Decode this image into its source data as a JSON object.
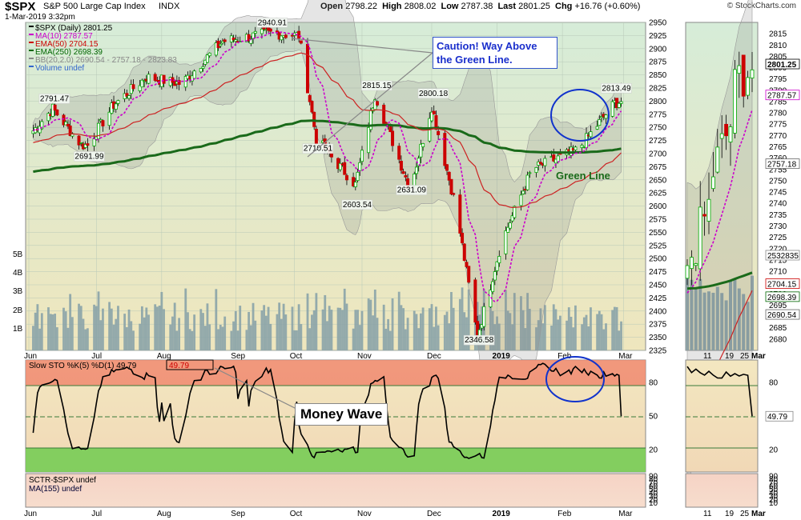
{
  "header": {
    "symbol": "$SPX",
    "name": "S&P 500 Large Cap Index",
    "exchange": "INDX",
    "date": "1-Mar-2019 3:32pm",
    "open_label": "Open",
    "open": "2798.22",
    "high_label": "High",
    "high": "2808.02",
    "low_label": "Low",
    "low": "2787.38",
    "last_label": "Last",
    "last": "2801.25",
    "chg_label": "Chg",
    "chg": "+16.76 (+0.60%)",
    "brand": "© StockCharts.com"
  },
  "legend": [
    {
      "text": "$SPX (Daily) 2801.25",
      "color": "#000000"
    },
    {
      "text": "MA(10) 2787.57",
      "color": "#cc00cc"
    },
    {
      "text": "EMA(50) 2704.15",
      "color": "#cc0000"
    },
    {
      "text": "EMA(250) 2698.39",
      "color": "#006600"
    },
    {
      "text": "BB(20,2.0) 2690.54 - 2757.18 - 2823.83",
      "color": "#888888"
    },
    {
      "text": "Volume undef",
      "color": "#3366cc"
    }
  ],
  "annotations": {
    "caution": "Caution! Way Above the Green Line.",
    "green_line": "Green Line",
    "money_wave": "Money Wave"
  },
  "stoch_legend": "Slow STO %K(5) %D(1) 49.79",
  "stoch_value_box": "49.79",
  "sctr_legend": [
    "SCTR-$SPX undef",
    "MA(155) undef"
  ],
  "colors": {
    "up": "#00aa00",
    "down": "#cc0000",
    "ma10": "#cc00cc",
    "ema50": "#cc0000",
    "ema250": "#006600",
    "bb": "#888888",
    "volume": "#8aa3a8",
    "overbought": "#f08a70",
    "oversold": "#77cc55",
    "circle": "#1133cc"
  },
  "chart_data": [
    {
      "type": "candlestick",
      "title": "$SPX S&P 500 Large Cap Index INDX",
      "ylim": [
        2325,
        2950
      ],
      "y_ticks": [
        2325,
        2350,
        2375,
        2400,
        2425,
        2450,
        2475,
        2500,
        2525,
        2550,
        2575,
        2600,
        2625,
        2650,
        2675,
        2700,
        2725,
        2750,
        2775,
        2800,
        2825,
        2850,
        2875,
        2900,
        2925,
        2950
      ],
      "x_labels": [
        "Jun",
        "Jul",
        "Aug",
        "Sep",
        "Oct",
        "Nov",
        "Dec",
        "2019",
        "Feb",
        "Mar"
      ],
      "volume_ticks": [
        "1B",
        "2B",
        "3B",
        "4B",
        "5B"
      ],
      "price_labels": [
        "2940.91",
        "2791.47",
        "2691.99",
        "2815.15",
        "2800.18",
        "2710.51",
        "2603.54",
        "2631.09",
        "2813.49",
        "2346.58"
      ],
      "close_path": [
        [
          "2018-06-01",
          2734
        ],
        [
          "2018-06-12",
          2786
        ],
        [
          "2018-06-25",
          2717
        ],
        [
          "2018-06-28",
          2716
        ],
        [
          "2018-07-10",
          2793
        ],
        [
          "2018-07-25",
          2846
        ],
        [
          "2018-08-10",
          2833
        ],
        [
          "2018-08-29",
          2914
        ],
        [
          "2018-09-20",
          2930
        ],
        [
          "2018-10-03",
          2925
        ],
        [
          "2018-10-11",
          2728
        ],
        [
          "2018-10-29",
          2641
        ],
        [
          "2018-11-07",
          2813
        ],
        [
          "2018-11-23",
          2633
        ],
        [
          "2018-12-03",
          2790
        ],
        [
          "2018-12-14",
          2599
        ],
        [
          "2018-12-24",
          2351
        ],
        [
          "2019-01-04",
          2531
        ],
        [
          "2019-01-18",
          2670
        ],
        [
          "2019-02-08",
          2707
        ],
        [
          "2019-02-25",
          2796
        ],
        [
          "2019-03-01",
          2801
        ]
      ],
      "ma10_last": 2787.57,
      "ema50_last": 2704.15,
      "ema250_last": 2698.39,
      "bb": {
        "lower": 2690.54,
        "mid": 2757.18,
        "upper": 2823.83
      }
    },
    {
      "type": "line",
      "title": "Slow STO %K(5) %D(1)",
      "ylim": [
        0,
        100
      ],
      "y_ticks": [
        20,
        50,
        80
      ],
      "last": 49.79,
      "overbought": 80,
      "oversold": 20
    },
    {
      "type": "line",
      "title": "SCTR-$SPX",
      "y_ticks": [
        10,
        20,
        30,
        40,
        50,
        60,
        70,
        80,
        90
      ],
      "value": "undef"
    },
    {
      "type": "candlestick",
      "title": "inset",
      "ylim": [
        2675,
        2820
      ],
      "y_ticks": [
        2680,
        2685,
        2690,
        2695,
        2700,
        2705,
        2710,
        2715,
        2720,
        2725,
        2730,
        2735,
        2740,
        2745,
        2750,
        2755,
        2760,
        2765,
        2770,
        2775,
        2780,
        2785,
        2790,
        2795,
        2800,
        2805,
        2810,
        2815
      ],
      "x_labels": [
        "11",
        "19",
        "25",
        "Mar"
      ],
      "value_labels": [
        "2801.25",
        "2787.57",
        "2757.18",
        "2704.15",
        "2698.39",
        "2690.54",
        "2532835"
      ]
    }
  ]
}
